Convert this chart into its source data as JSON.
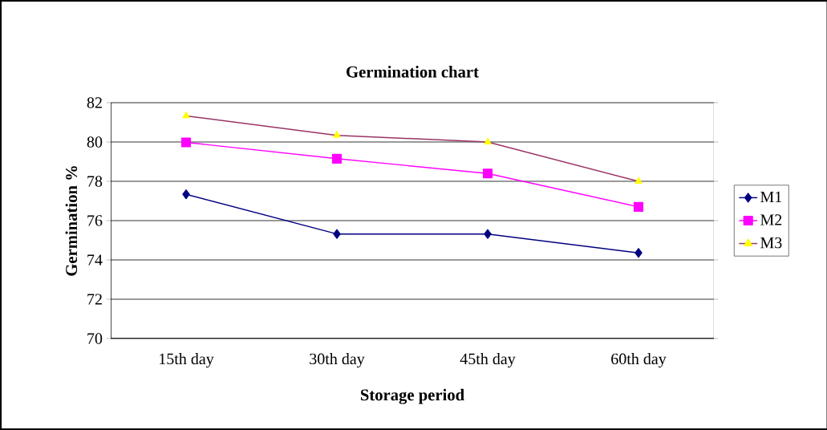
{
  "chart_data": {
    "type": "line",
    "title": "Germination chart",
    "xlabel": "Storage period",
    "ylabel": "Germination %",
    "categories": [
      "15th day",
      "30th day",
      "45th day",
      "60th day"
    ],
    "series": [
      {
        "name": "M1",
        "color": "#000080",
        "marker": "diamond",
        "values": [
          77.34,
          75.32,
          75.32,
          74.36
        ]
      },
      {
        "name": "M2",
        "color": "#ff00ff",
        "marker": "square",
        "values": [
          79.98,
          79.15,
          78.4,
          76.7
        ]
      },
      {
        "name": "M3",
        "color": "#993366",
        "marker": "triangle",
        "colors": [
          "#ffff00",
          "#ffff00",
          "#ffff00",
          "#ffff00"
        ],
        "values": [
          81.33,
          80.34,
          80.0,
          78.0
        ]
      }
    ],
    "ylim": [
      70,
      82
    ],
    "yticks": [
      70,
      72,
      74,
      76,
      78,
      80,
      82
    ],
    "grid": "y",
    "legend": "right",
    "line_style": "solid"
  }
}
